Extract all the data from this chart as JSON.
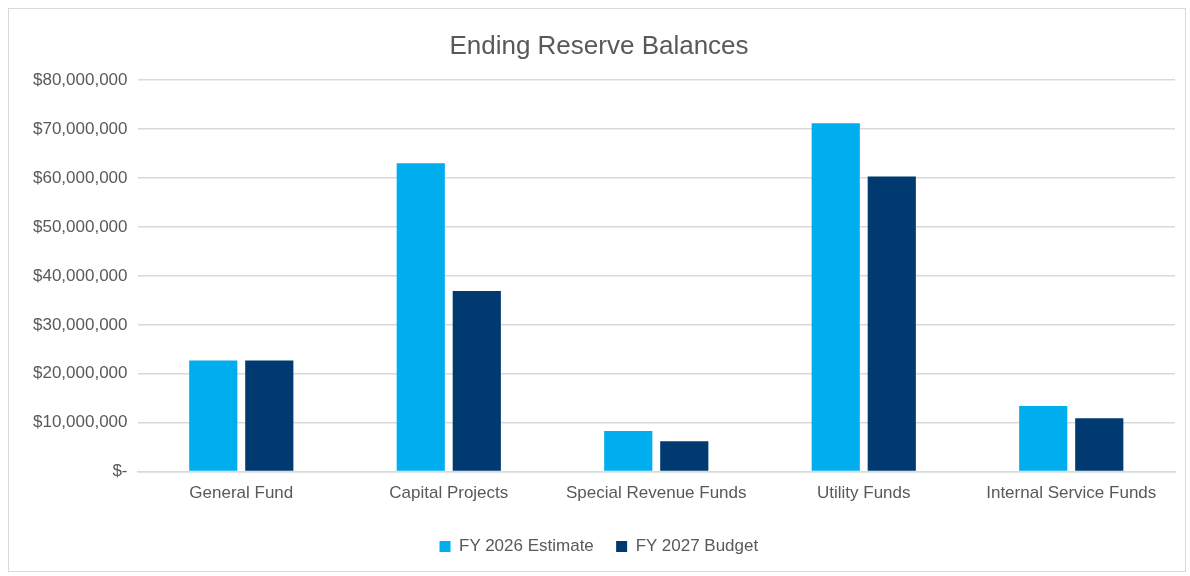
{
  "chart_data": {
    "type": "bar",
    "title": "Ending Reserve Balances",
    "categories": [
      "General Fund",
      "Capital Projects",
      "Special Revenue Funds",
      "Utility Funds",
      "Internal Service Funds"
    ],
    "series": [
      {
        "name": "FY 2026 Estimate",
        "color": "#00adee",
        "values": [
          22700000,
          63000000,
          8300000,
          71200000,
          13400000
        ]
      },
      {
        "name": "FY 2027 Budget",
        "color": "#003a70",
        "values": [
          22700000,
          36900000,
          6200000,
          60300000,
          10900000
        ]
      }
    ],
    "ylim": [
      0,
      80000000
    ],
    "yticks": [
      {
        "value": 0,
        "label": "$-"
      },
      {
        "value": 10000000,
        "label": "$10,000,000"
      },
      {
        "value": 20000000,
        "label": "$20,000,000"
      },
      {
        "value": 30000000,
        "label": "$30,000,000"
      },
      {
        "value": 40000000,
        "label": "$40,000,000"
      },
      {
        "value": 50000000,
        "label": "$50,000,000"
      },
      {
        "value": 60000000,
        "label": "$60,000,000"
      },
      {
        "value": 70000000,
        "label": "$70,000,000"
      },
      {
        "value": 80000000,
        "label": "$80,000,000"
      }
    ],
    "grid": "y",
    "legend": "bottom"
  }
}
